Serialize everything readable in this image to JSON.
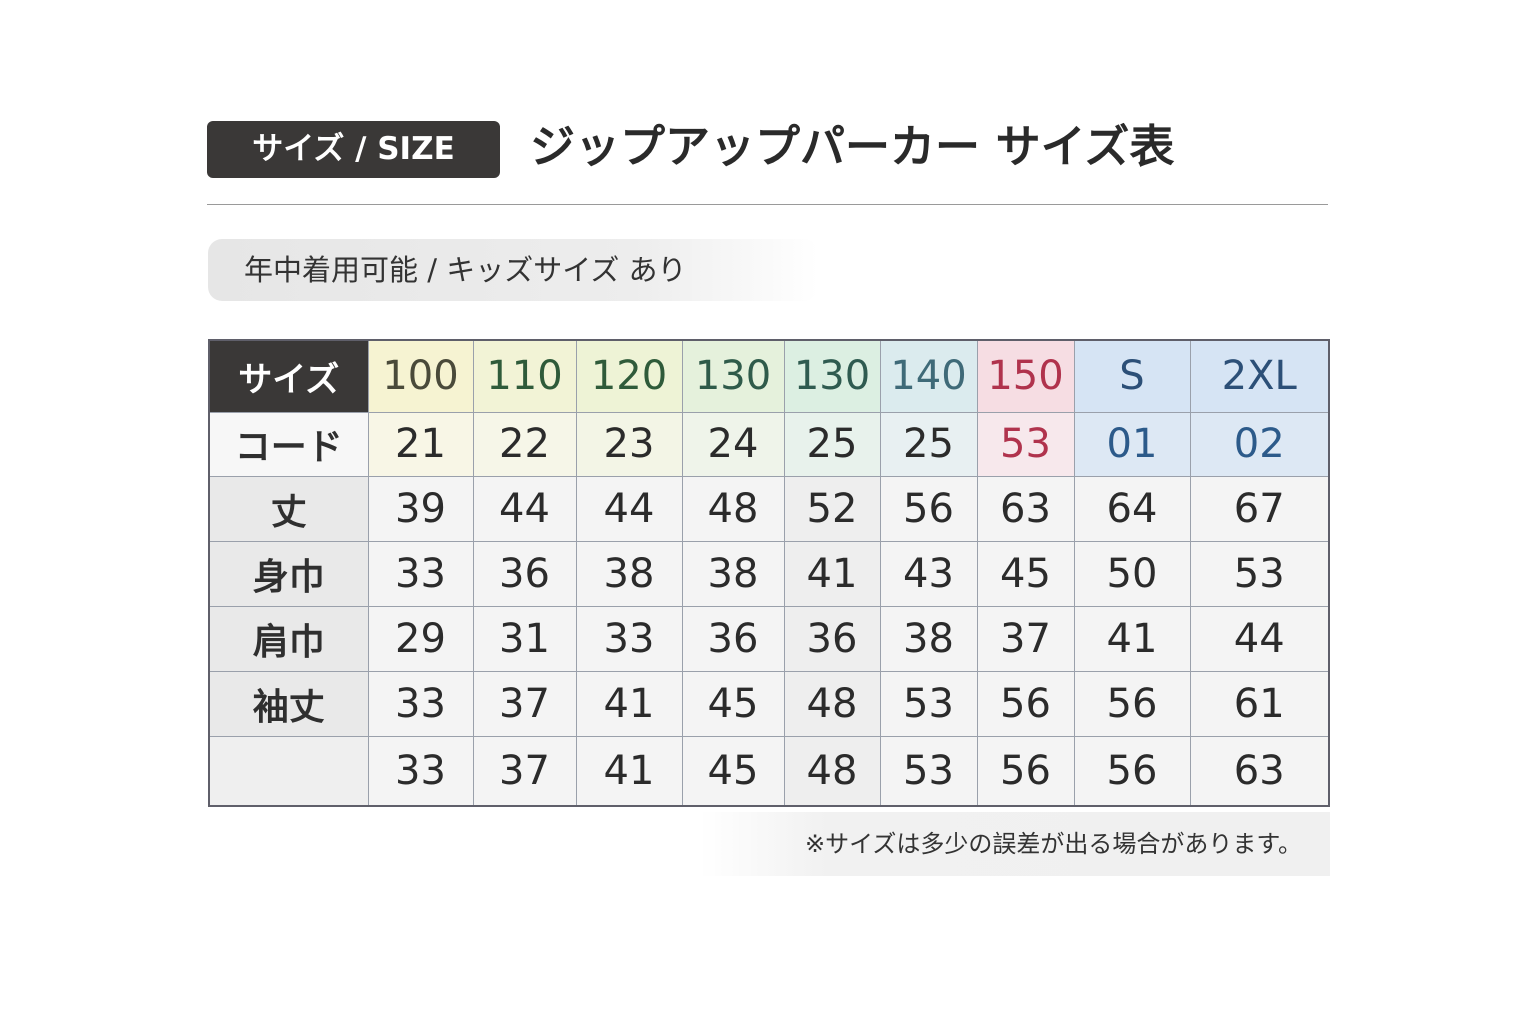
{
  "badge": "サイズ / SIZE",
  "title": "ジップアップパーカー サイズ表",
  "subtitle": "年中着用可能 / キッズサイズ あり",
  "table": {
    "corner": "サイズ",
    "code_label": "コード",
    "sizes": [
      {
        "label": "100",
        "color": "#4a4a3a",
        "bg": "#f6f3d2",
        "code": "21",
        "code_color": "#2b2b2b",
        "code_bg": "#f8f6e6"
      },
      {
        "label": "110",
        "color": "#2f5b3a",
        "bg": "#f2f3d6",
        "code": "22",
        "code_color": "#2b2b2b",
        "code_bg": "#f6f6e8"
      },
      {
        "label": "120",
        "color": "#2f5b3a",
        "bg": "#eef3d6",
        "code": "23",
        "code_color": "#2b2b2b",
        "code_bg": "#f3f5e6"
      },
      {
        "label": "130",
        "color": "#2f5b4a",
        "bg": "#e5f1dc",
        "code": "24",
        "code_color": "#2b2b2b",
        "code_bg": "#eff4ea"
      },
      {
        "label": "130",
        "color": "#2f5b50",
        "bg": "#dcefe2",
        "code": "25",
        "code_color": "#2b2b2b",
        "code_bg": "#e8f2ec"
      },
      {
        "label": "140",
        "color": "#3f6a78",
        "bg": "#dbebee",
        "code": "25",
        "code_color": "#2b2b2b",
        "code_bg": "#e8f0f2"
      },
      {
        "label": "150",
        "color": "#b0334d",
        "bg": "#f6dde3",
        "code": "53",
        "code_color": "#b0334d",
        "code_bg": "#f7e8ec"
      },
      {
        "label": "S",
        "color": "#2c4f77",
        "bg": "#d6e4f4",
        "code": "01",
        "code_color": "#2c5a8a",
        "code_bg": "#dde8f4"
      },
      {
        "label": "2XL",
        "color": "#2c4f77",
        "bg": "#d6e4f4",
        "code": "02",
        "code_color": "#2c5a8a",
        "code_bg": "#dde8f4"
      }
    ],
    "rows": [
      {
        "label": "丈",
        "values": [
          "39",
          "44",
          "44",
          "48",
          "52",
          "56",
          "63",
          "64",
          "67"
        ]
      },
      {
        "label": "身巾",
        "values": [
          "33",
          "36",
          "38",
          "38",
          "41",
          "43",
          "45",
          "50",
          "53"
        ]
      },
      {
        "label": "肩巾",
        "values": [
          "29",
          "31",
          "33",
          "36",
          "36",
          "38",
          "37",
          "41",
          "44"
        ]
      },
      {
        "label": "袖丈",
        "values": [
          "33",
          "37",
          "41",
          "45",
          "48",
          "53",
          "56",
          "56",
          "61"
        ]
      },
      {
        "label": "",
        "values": [
          "33",
          "37",
          "41",
          "45",
          "48",
          "53",
          "56",
          "56",
          "63"
        ]
      }
    ]
  },
  "footnote": "※サイズは多少の誤差が出る場合があります。"
}
